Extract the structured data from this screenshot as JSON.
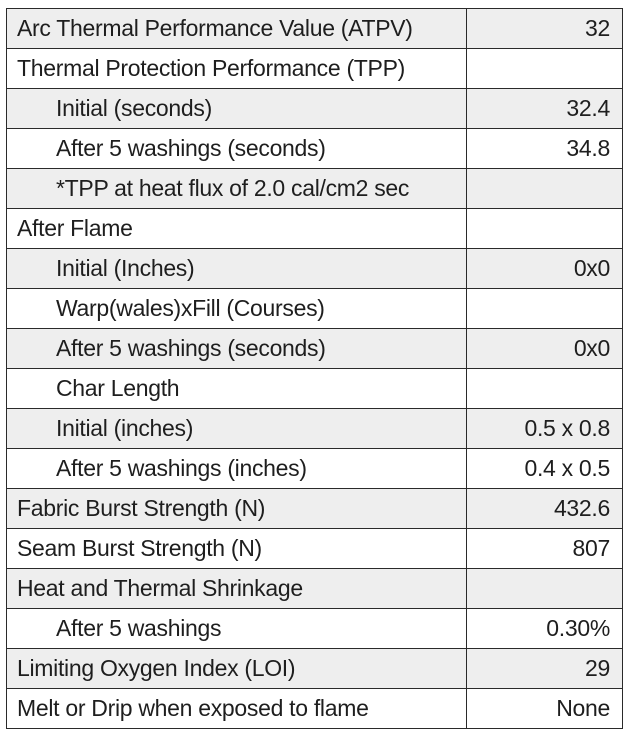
{
  "spec_table": {
    "rows": [
      {
        "label": "Arc Thermal Performance Value (ATPV)",
        "value": "32",
        "indent": false
      },
      {
        "label": "Thermal Protection Performance (TPP)",
        "value": "",
        "indent": false
      },
      {
        "label": "Initial (seconds)",
        "value": "32.4",
        "indent": true
      },
      {
        "label": "After 5 washings (seconds)",
        "value": "34.8",
        "indent": true
      },
      {
        "label": "*TPP at heat flux of 2.0 cal/cm2 sec",
        "value": "",
        "indent": true
      },
      {
        "label": "After Flame",
        "value": "",
        "indent": false
      },
      {
        "label": "Initial (Inches)",
        "value": "0x0",
        "indent": true
      },
      {
        "label": "Warp(wales)xFill (Courses)",
        "value": "",
        "indent": true
      },
      {
        "label": "After 5 washings (seconds)",
        "value": "0x0",
        "indent": true
      },
      {
        "label": "Char Length",
        "value": "",
        "indent": true
      },
      {
        "label": "Initial (inches)",
        "value": "0.5 x 0.8",
        "indent": true
      },
      {
        "label": "After 5 washings (inches)",
        "value": "0.4 x 0.5",
        "indent": true
      },
      {
        "label": "Fabric Burst Strength (N)",
        "value": "432.6",
        "indent": false
      },
      {
        "label": "Seam Burst Strength (N)",
        "value": "807",
        "indent": false
      },
      {
        "label": "Heat and Thermal Shrinkage",
        "value": "",
        "indent": false
      },
      {
        "label": "After 5 washings",
        "value": "0.30%",
        "indent": true
      },
      {
        "label": "Limiting Oxygen Index (LOI)",
        "value": "29",
        "indent": false
      },
      {
        "label": "Melt or Drip when exposed to flame",
        "value": "None",
        "indent": false
      }
    ]
  },
  "colors": {
    "row_shaded": "#eeeeee",
    "row_plain": "#ffffff",
    "border": "#2a2a2a",
    "text": "#1e1e1e"
  }
}
